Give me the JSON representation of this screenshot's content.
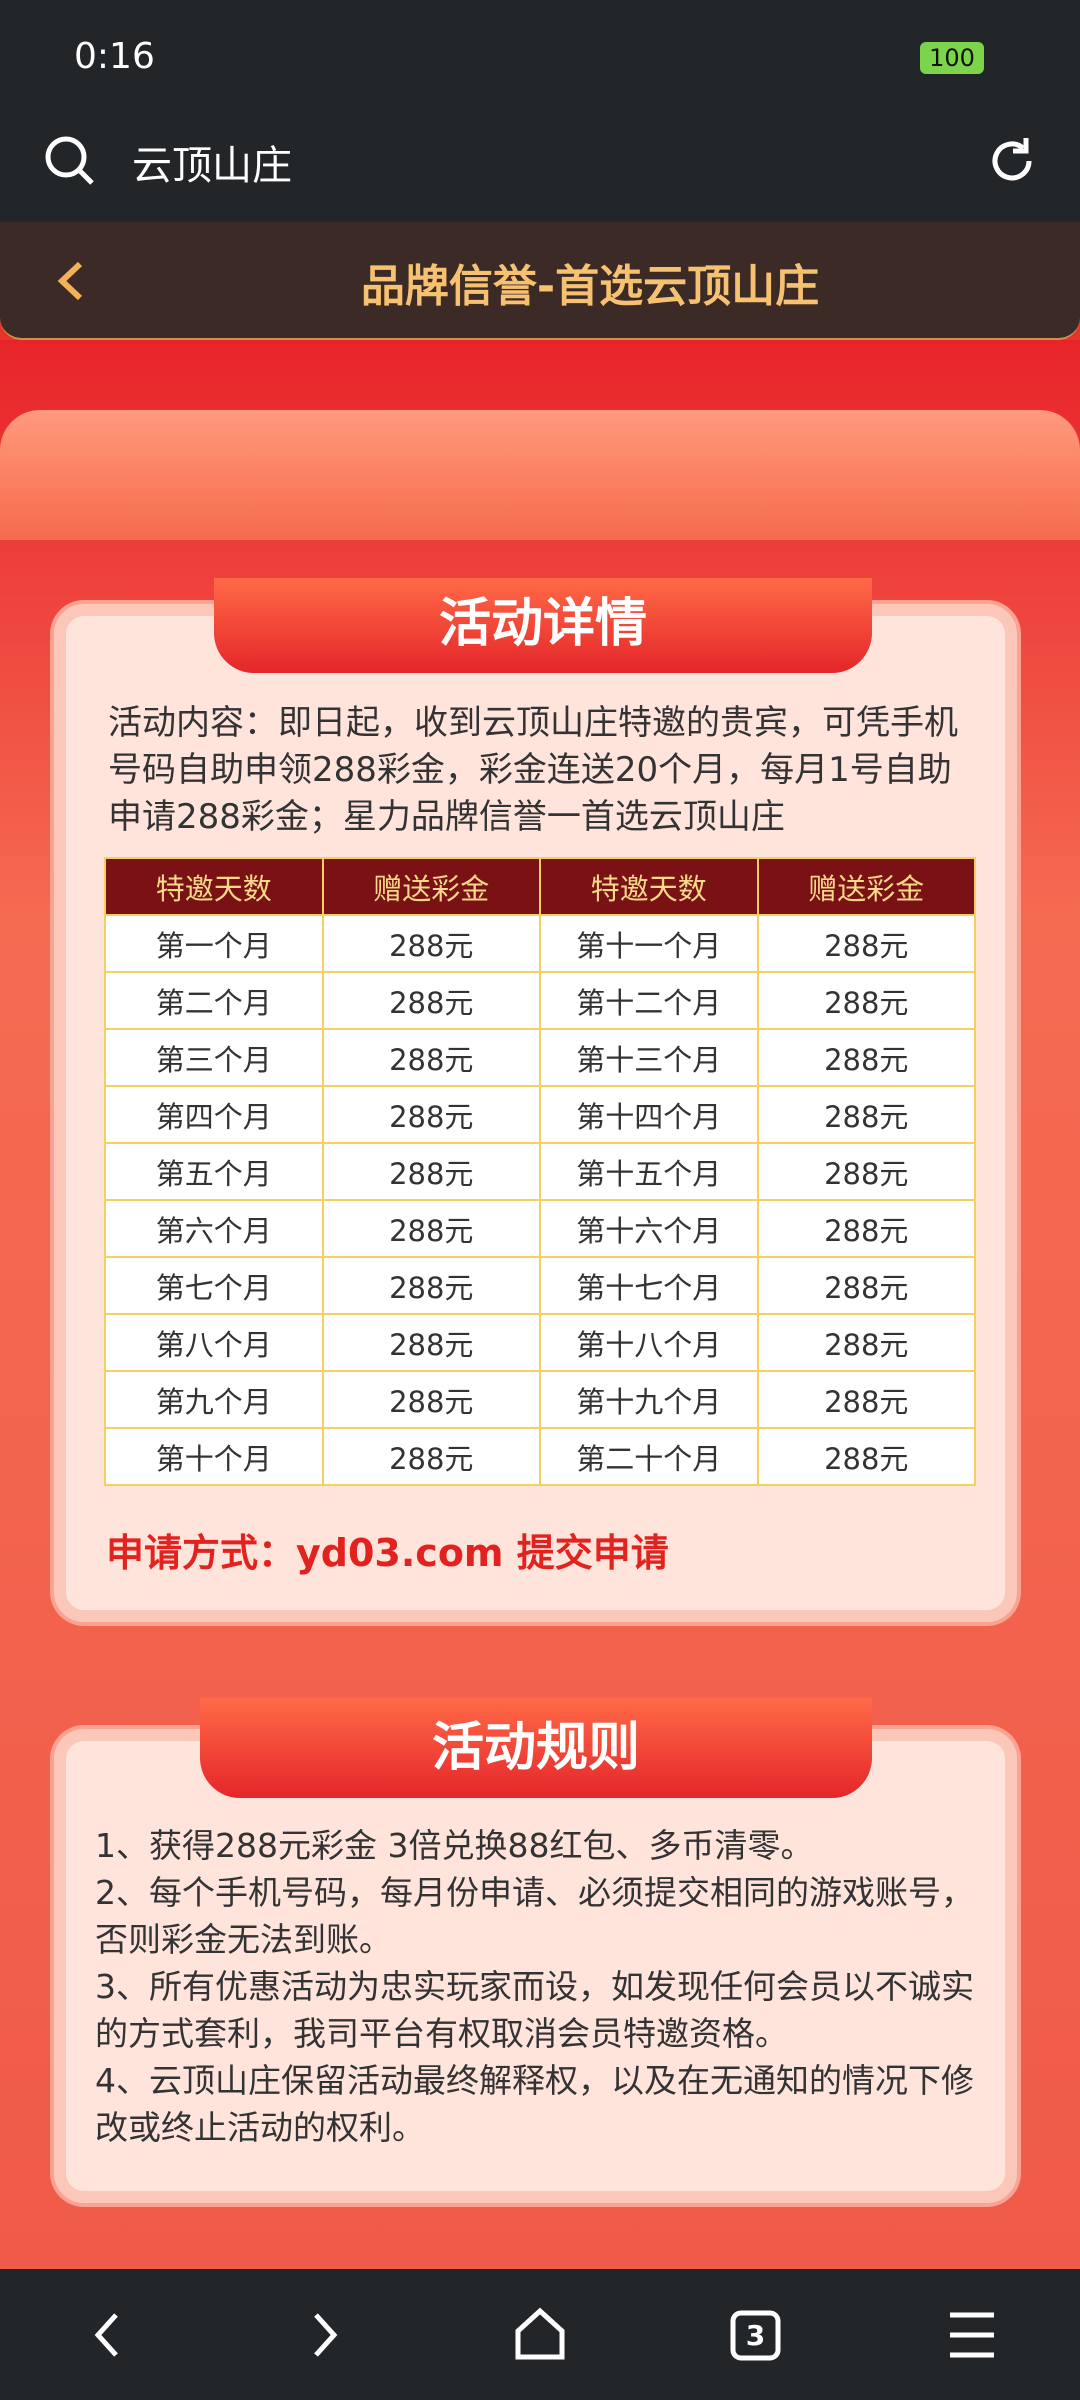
{
  "status_bar": {
    "time": "0:16",
    "battery": "100"
  },
  "search": {
    "query": "云顶山庄"
  },
  "header": {
    "title": "品牌信誉-首选云顶山庄"
  },
  "details": {
    "title": "活动详情",
    "content": "活动内容：即日起，收到云顶山庄特邀的贵宾，可凭手机号码自助申领288彩金，彩金连送20个月，每月1号自助申请288彩金；星力品牌信誉一首选云顶山庄",
    "table": {
      "header": [
        "特邀天数",
        "赠送彩金",
        "特邀天数",
        "赠送彩金"
      ],
      "rows": [
        [
          "第一个月",
          "288元",
          "第十一个月",
          "288元"
        ],
        [
          "第二个月",
          "288元",
          "第十二个月",
          "288元"
        ],
        [
          "第三个月",
          "288元",
          "第十三个月",
          "288元"
        ],
        [
          "第四个月",
          "288元",
          "第十四个月",
          "288元"
        ],
        [
          "第五个月",
          "288元",
          "第十五个月",
          "288元"
        ],
        [
          "第六个月",
          "288元",
          "第十六个月",
          "288元"
        ],
        [
          "第七个月",
          "288元",
          "第十七个月",
          "288元"
        ],
        [
          "第八个月",
          "288元",
          "第十八个月",
          "288元"
        ],
        [
          "第九个月",
          "288元",
          "第十九个月",
          "288元"
        ],
        [
          "第十个月",
          "288元",
          "第二十个月",
          "288元"
        ]
      ]
    },
    "apply": "申请方式：yd03.com 提交申请"
  },
  "rules": {
    "title": "活动规则",
    "items": [
      "1、获得288元彩金  3倍兑换88红包、多币清零。",
      "2、每个手机号码，每月份申请、必须提交相同的游戏账号，否则彩金无法到账。",
      "3、所有优惠活动为忠实玩家而设，如发现任何会员以不诚实的方式套利，我司平台有权取消会员特邀资格。",
      "4、云顶山庄保留活动最终解释权，以及在无通知的情况下修改或终止活动的权利。"
    ]
  },
  "nav": {
    "tabs": "3"
  }
}
